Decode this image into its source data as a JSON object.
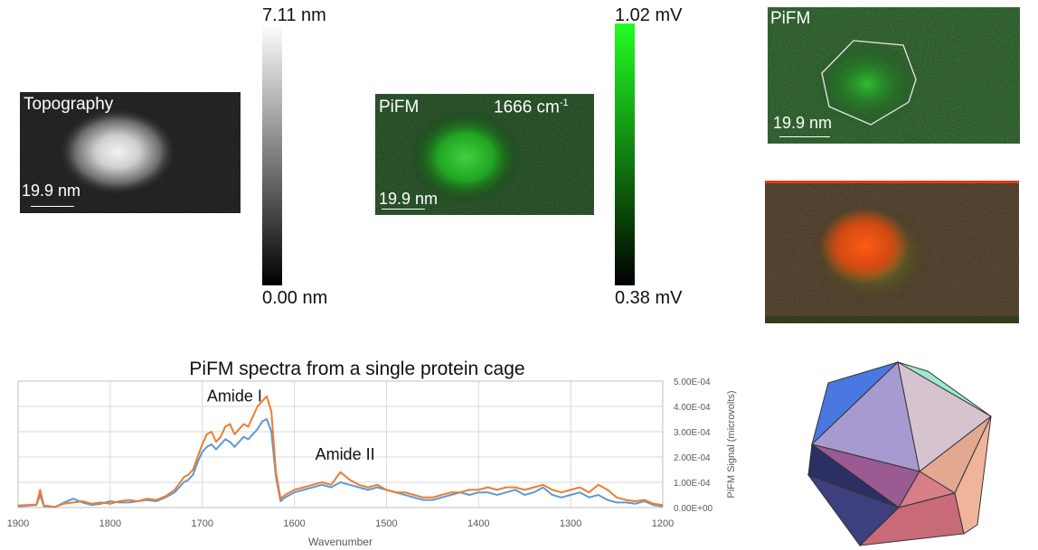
{
  "topography": {
    "label": "Topography",
    "scale_text": "19.9 nm"
  },
  "topo_colorbar": {
    "max_label": "7.11 nm",
    "min_label": "0.00 nm"
  },
  "pifm_map": {
    "label": "PiFM",
    "wavenumber_text": "1666 cm",
    "wavenumber_sup": "-1",
    "scale_text": "19.9 nm"
  },
  "pifm_colorbar": {
    "max_label": "1.02 mV",
    "min_label": "0.38 mV"
  },
  "pifm_outline": {
    "label": "PiFM",
    "scale_text": "19.9 nm"
  },
  "chart_data": {
    "type": "line",
    "title": "PiFM spectra from a single protein cage",
    "xlabel": "Wavenumber",
    "ylabel": "PiFM Signal (microvolts)",
    "xlim": [
      1900,
      1200
    ],
    "ylim": [
      0,
      0.0005
    ],
    "x_ticks": [
      "1900",
      "1800",
      "1700",
      "1600",
      "1500",
      "1400",
      "1300",
      "1200"
    ],
    "y_ticks": [
      "5.00E-04",
      "4.00E-04",
      "3.00E-04",
      "2.00E-04",
      "1.00E-04",
      "0.00E+00"
    ],
    "grid": true,
    "colors": [
      "#5b9bd5",
      "#ed7d31"
    ],
    "annotations": [
      {
        "text": "Amide I",
        "x": 1665,
        "y": 0.00042
      },
      {
        "text": "Amide II",
        "x": 1545,
        "y": 0.00019
      }
    ],
    "series": [
      {
        "x": [
          1900,
          1880,
          1876,
          1872,
          1860,
          1850,
          1840,
          1830,
          1820,
          1810,
          1800,
          1790,
          1780,
          1770,
          1760,
          1750,
          1740,
          1730,
          1720,
          1715,
          1710,
          1705,
          1700,
          1695,
          1690,
          1685,
          1680,
          1675,
          1670,
          1665,
          1660,
          1655,
          1650,
          1645,
          1640,
          1635,
          1630,
          1625,
          1620,
          1615,
          1610,
          1600,
          1590,
          1580,
          1570,
          1560,
          1550,
          1540,
          1530,
          1520,
          1510,
          1500,
          1490,
          1480,
          1470,
          1460,
          1450,
          1440,
          1430,
          1420,
          1410,
          1400,
          1390,
          1380,
          1370,
          1360,
          1350,
          1340,
          1330,
          1320,
          1310,
          1300,
          1290,
          1280,
          1270,
          1260,
          1250,
          1240,
          1230,
          1220,
          1210,
          1200
        ],
        "values": [
          5e-06,
          1e-05,
          5e-05,
          5e-06,
          2e-06,
          2e-05,
          3.5e-05,
          2e-05,
          1e-05,
          1.5e-05,
          2.5e-05,
          2e-05,
          2e-05,
          2.5e-05,
          3e-05,
          2.5e-05,
          4e-05,
          6e-05,
          0.0001,
          0.00011,
          0.00013,
          0.00018,
          0.00022,
          0.00024,
          0.00025,
          0.00023,
          0.00025,
          0.00027,
          0.00026,
          0.00024,
          0.00026,
          0.00028,
          0.00027,
          0.00029,
          0.00031,
          0.00034,
          0.00035,
          0.0003,
          0.00012,
          2.5e-05,
          4e-05,
          6e-05,
          7e-05,
          8e-05,
          9e-05,
          8e-05,
          0.0001,
          9e-05,
          8e-05,
          7e-05,
          8e-05,
          7e-05,
          6e-05,
          5e-05,
          4e-05,
          3e-05,
          3e-05,
          4e-05,
          5e-05,
          6e-05,
          5e-05,
          6e-05,
          6e-05,
          5e-05,
          6e-05,
          7e-05,
          5e-05,
          6e-05,
          8e-05,
          5e-05,
          4e-05,
          5e-05,
          6e-05,
          4e-05,
          5e-05,
          3e-05,
          2e-05,
          2e-05,
          1.5e-05,
          2.5e-05,
          1e-05,
          5e-06
        ]
      },
      {
        "x": [
          1900,
          1880,
          1876,
          1872,
          1860,
          1850,
          1840,
          1830,
          1820,
          1810,
          1800,
          1790,
          1780,
          1770,
          1760,
          1750,
          1740,
          1730,
          1720,
          1715,
          1710,
          1705,
          1700,
          1695,
          1690,
          1685,
          1680,
          1675,
          1670,
          1665,
          1660,
          1655,
          1650,
          1645,
          1640,
          1635,
          1630,
          1625,
          1620,
          1615,
          1610,
          1600,
          1590,
          1580,
          1570,
          1560,
          1550,
          1540,
          1530,
          1520,
          1510,
          1500,
          1490,
          1480,
          1470,
          1460,
          1450,
          1440,
          1430,
          1420,
          1410,
          1400,
          1390,
          1380,
          1370,
          1360,
          1350,
          1340,
          1330,
          1320,
          1310,
          1300,
          1290,
          1280,
          1270,
          1260,
          1250,
          1240,
          1230,
          1220,
          1210,
          1200
        ],
        "values": [
          8e-06,
          1.2e-05,
          7e-05,
          8e-06,
          3e-06,
          1.5e-05,
          2e-05,
          2.5e-05,
          1.5e-05,
          2e-05,
          1.5e-05,
          2.5e-05,
          3e-05,
          2.5e-05,
          3.5e-05,
          3e-05,
          4.5e-05,
          7e-05,
          0.00012,
          0.00013,
          0.00015,
          0.0002,
          0.00025,
          0.00029,
          0.0003,
          0.00026,
          0.00028,
          0.00032,
          0.00033,
          0.00029,
          0.00031,
          0.00033,
          0.00032,
          0.00036,
          0.0004,
          0.00042,
          0.00044,
          0.00038,
          0.00014,
          3.5e-05,
          5e-05,
          7e-05,
          8e-05,
          9e-05,
          0.0001,
          9e-05,
          0.00014,
          0.00011,
          9e-05,
          8e-05,
          9e-05,
          7e-05,
          6e-05,
          6e-05,
          5e-05,
          4e-05,
          4e-05,
          5e-05,
          6e-05,
          6e-05,
          7e-05,
          7e-05,
          8e-05,
          7e-05,
          8e-05,
          8e-05,
          7e-05,
          8e-05,
          9e-05,
          7e-05,
          6e-05,
          7e-05,
          8e-05,
          6e-05,
          9e-05,
          7e-05,
          4e-05,
          3e-05,
          2.5e-05,
          3e-05,
          1.5e-05,
          1e-05
        ]
      }
    ]
  }
}
